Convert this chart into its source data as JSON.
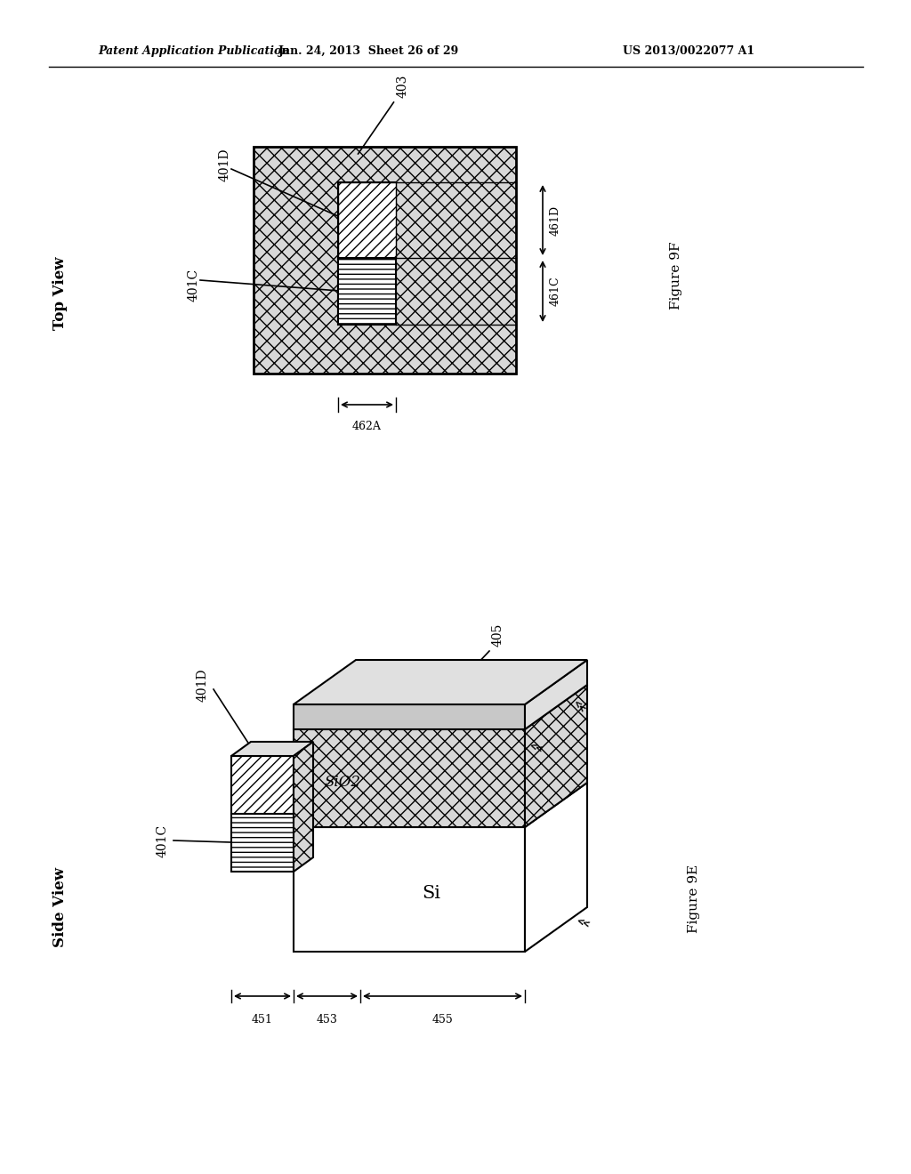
{
  "header_left": "Patent Application Publication",
  "header_mid": "Jan. 24, 2013  Sheet 26 of 29",
  "header_right": "US 2013/0022077 A1",
  "bg_color": "#ffffff",
  "fig9f_label": "Figure 9F",
  "fig9e_label": "Figure 9E",
  "top_view_label": "Top View",
  "side_view_label": "Side View",
  "label_403": "403",
  "label_401D_top": "401D",
  "label_401C_top": "401C",
  "label_461D": "461D",
  "label_461C": "461C",
  "label_462A": "462A",
  "label_401D_side": "401D",
  "label_401C_side": "401C",
  "label_405": "405",
  "label_451": "451",
  "label_453": "453",
  "label_455": "455",
  "label_Si": "Si",
  "label_SiO2": "SiO2",
  "cross_hatch_color": "#d8d8d8",
  "white_color": "#ffffff",
  "light_gray": "#c8c8c8",
  "lighter_gray": "#e0e0e0",
  "side_gray": "#f0f0f0",
  "top_face_gray": "#b0b0b0"
}
